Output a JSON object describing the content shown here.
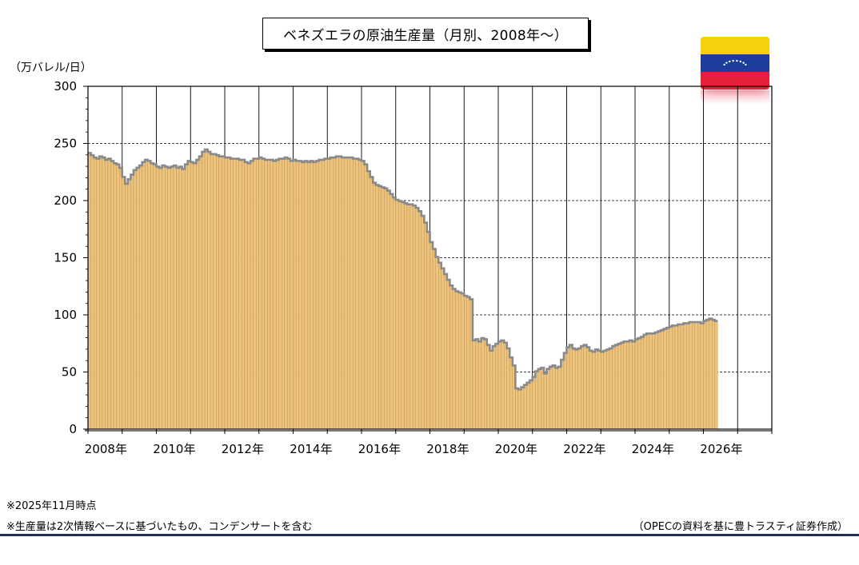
{
  "chart_data": {
    "type": "bar",
    "title": "ベネズエラの原油生産量（月別、2008年～）",
    "ylabel": "（万バレル/日）",
    "xlabel": "",
    "ylim": [
      0,
      300
    ],
    "yticks": [
      0,
      50,
      100,
      150,
      200,
      250,
      300
    ],
    "xlim": [
      "2008-01",
      "2027-12"
    ],
    "xticks": [
      "2008年",
      "2010年",
      "2012年",
      "2014年",
      "2016年",
      "2018年",
      "2020年",
      "2022年",
      "2024年",
      "2026年"
    ],
    "grid": "dashed horizontal at 50-unit intervals, solid vertical at each year",
    "legend": "none",
    "bar_color": "#edc27a",
    "bar_edge_color": "#8a8a8a",
    "start_month": "2008-01",
    "frequency": "monthly",
    "values": [
      241,
      239,
      237,
      236,
      238,
      237,
      235,
      236,
      234,
      232,
      231,
      228,
      220,
      214,
      218,
      222,
      226,
      228,
      230,
      233,
      235,
      234,
      232,
      231,
      229,
      228,
      230,
      229,
      228,
      229,
      230,
      228,
      229,
      227,
      231,
      234,
      233,
      232,
      235,
      238,
      242,
      244,
      242,
      240,
      240,
      239,
      238,
      238,
      237,
      237,
      236,
      236,
      236,
      235,
      235,
      233,
      232,
      234,
      236,
      236,
      237,
      236,
      235,
      235,
      235,
      234,
      235,
      236,
      236,
      237,
      236,
      234,
      235,
      234,
      234,
      233,
      234,
      233,
      234,
      233,
      234,
      235,
      235,
      236,
      236,
      237,
      237,
      238,
      238,
      237,
      237,
      237,
      237,
      236,
      236,
      235,
      234,
      231,
      225,
      220,
      215,
      213,
      212,
      211,
      210,
      208,
      205,
      202,
      200,
      199,
      198,
      197,
      196,
      196,
      195,
      193,
      190,
      186,
      180,
      172,
      163,
      157,
      150,
      145,
      140,
      135,
      130,
      125,
      122,
      120,
      119,
      118,
      116,
      115,
      113,
      77,
      78,
      76,
      79,
      78,
      73,
      68,
      72,
      74,
      76,
      77,
      75,
      70,
      62,
      55,
      35,
      34,
      36,
      38,
      40,
      42,
      45,
      50,
      52,
      53,
      48,
      52,
      54,
      55,
      53,
      54,
      60,
      66,
      71,
      73,
      70,
      69,
      70,
      72,
      73,
      71,
      68,
      67,
      69,
      68,
      67,
      68,
      69,
      70,
      72,
      73,
      74,
      75,
      76,
      76,
      77,
      76,
      78,
      79,
      80,
      82,
      83,
      83,
      83,
      84,
      85,
      86,
      87,
      88,
      89,
      90,
      90,
      91,
      91,
      92,
      92,
      93,
      93,
      93,
      93,
      92,
      94,
      95,
      96,
      95,
      94
    ]
  },
  "notes": {
    "note1": "※2025年11月時点",
    "note2": "※生産量は2次情報ベースに基づいたもの、コンデンサートを含む"
  },
  "source": "（OPECの資料を基に豊トラスティ証券作成）",
  "flag": {
    "colors": [
      "#f6d10b",
      "#1d3d9c",
      "#e3223a"
    ],
    "icon": "venezuela-flag-icon"
  }
}
